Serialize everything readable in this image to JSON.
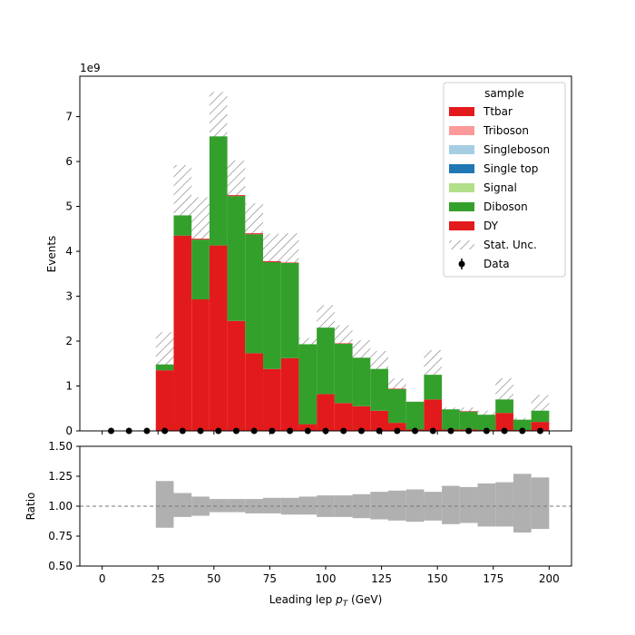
{
  "chart_data": [
    {
      "type": "bar",
      "stacked": true,
      "ylabel": "Events",
      "y_offset_label": "1e9",
      "ylim": [
        0,
        7.9
      ],
      "xlim": [
        -10,
        210
      ],
      "yticks": [
        0,
        1,
        2,
        3,
        4,
        5,
        6,
        7
      ],
      "bins": [
        [
          24,
          32
        ],
        [
          32,
          40
        ],
        [
          40,
          48
        ],
        [
          48,
          56
        ],
        [
          56,
          64
        ],
        [
          64,
          72
        ],
        [
          72,
          80
        ],
        [
          80,
          88
        ],
        [
          88,
          96
        ],
        [
          96,
          104
        ],
        [
          104,
          112
        ],
        [
          112,
          120
        ],
        [
          120,
          128
        ],
        [
          128,
          136
        ],
        [
          136,
          144
        ],
        [
          144,
          152
        ],
        [
          152,
          160
        ],
        [
          160,
          168
        ],
        [
          168,
          176
        ],
        [
          176,
          184
        ],
        [
          184,
          192
        ],
        [
          192,
          200
        ]
      ],
      "legend_title": "sample",
      "legend_position": "top-right",
      "series": [
        {
          "name": "DY",
          "color": "#e31a1c",
          "values": [
            1.35,
            4.35,
            2.93,
            4.13,
            2.45,
            1.73,
            1.38,
            1.62,
            0.15,
            0.82,
            0.62,
            0.55,
            0.45,
            0.18,
            0.03,
            0.7,
            0.03,
            0.03,
            0.02,
            0.4,
            0.02,
            0.2
          ]
        },
        {
          "name": "Diboson",
          "color": "#33a02c",
          "values": [
            0.13,
            0.45,
            1.33,
            2.43,
            2.78,
            2.65,
            2.38,
            2.12,
            1.78,
            1.48,
            1.32,
            1.08,
            0.93,
            0.75,
            0.62,
            0.55,
            0.45,
            0.4,
            0.34,
            0.3,
            0.23,
            0.25
          ]
        },
        {
          "name": "Signal",
          "color": "#b2df8a",
          "values": [
            0,
            0,
            0,
            0,
            0,
            0,
            0,
            0,
            0,
            0,
            0,
            0,
            0,
            0,
            0,
            0,
            0,
            0,
            0,
            0,
            0,
            0
          ]
        },
        {
          "name": "Single top",
          "color": "#1f78b4",
          "values": [
            0,
            0,
            0,
            0,
            0,
            0,
            0,
            0,
            0,
            0,
            0,
            0,
            0,
            0,
            0,
            0,
            0,
            0,
            0,
            0,
            0,
            0
          ]
        },
        {
          "name": "Singleboson",
          "color": "#a6cee3",
          "values": [
            0,
            0,
            0,
            0,
            0,
            0,
            0,
            0,
            0,
            0,
            0,
            0,
            0,
            0,
            0,
            0,
            0,
            0,
            0,
            0,
            0,
            0
          ]
        },
        {
          "name": "Triboson",
          "color": "#fb9a99",
          "values": [
            0,
            0,
            0,
            0,
            0,
            0,
            0,
            0,
            0,
            0,
            0,
            0,
            0,
            0,
            0,
            0,
            0,
            0,
            0,
            0,
            0,
            0
          ]
        },
        {
          "name": "Ttbar",
          "color": "#e31a1c",
          "values": [
            0,
            0,
            0.02,
            0,
            0.02,
            0.02,
            0.02,
            0.01,
            0,
            0,
            0.01,
            0,
            0,
            0.01,
            0,
            0,
            0,
            0.01,
            0,
            0,
            0,
            0
          ]
        }
      ],
      "stat_unc": {
        "name": "Stat. Unc.",
        "color": "#777777",
        "lo": [
          1.22,
          3.72,
          3.4,
          5.64,
          4.45,
          3.73,
          3.41,
          3.07,
          1.78,
          1.84,
          1.59,
          1.27,
          1.03,
          0.77,
          0.58,
          0.76,
          0.43,
          0.36,
          0.27,
          0.3,
          0.2,
          0.18
        ],
        "hi": [
          2.2,
          5.92,
          5.2,
          7.55,
          6.02,
          5.07,
          4.39,
          4.4,
          2.07,
          2.8,
          2.35,
          2.02,
          1.78,
          1.17,
          0.62,
          1.8,
          0.52,
          0.52,
          0.45,
          1.17,
          0.29,
          0.8
        ]
      },
      "data_points": {
        "name": "Data",
        "color": "#000000",
        "x": [
          4,
          12,
          20,
          28,
          36,
          44,
          52,
          60,
          68,
          76,
          84,
          92,
          100,
          108,
          116,
          124,
          132,
          140,
          148,
          156,
          164,
          172,
          180,
          188,
          196
        ],
        "y": [
          0,
          0,
          0,
          0,
          0,
          0,
          0,
          0,
          0,
          0,
          0,
          0,
          0,
          0,
          0,
          0,
          0,
          0,
          0,
          0,
          0,
          0,
          0,
          0,
          0
        ]
      }
    },
    {
      "type": "bar",
      "ylabel": "Ratio",
      "xlabel": "Leading lep p_T (GeV)",
      "xlabel_main": "Leading lep ",
      "xlabel_sym": "p",
      "xlabel_sub": "T",
      "xlabel_unit": " (GeV)",
      "xlim": [
        -10,
        210
      ],
      "ylim": [
        0.5,
        1.5
      ],
      "yticks": [
        "0.50",
        "0.75",
        "1.00",
        "1.25",
        "1.50"
      ],
      "ytick_values": [
        0.5,
        0.75,
        1.0,
        1.25,
        1.5
      ],
      "xticks": [
        "0",
        "25",
        "50",
        "75",
        "100",
        "125",
        "150",
        "175",
        "200"
      ],
      "xtick_values": [
        0,
        25,
        50,
        75,
        100,
        125,
        150,
        175,
        200
      ],
      "reference_line": 1.0,
      "unc_band_color": "#b0b0b0",
      "unc_lo": [
        0.82,
        0.91,
        0.92,
        0.95,
        0.95,
        0.94,
        0.94,
        0.93,
        0.93,
        0.91,
        0.91,
        0.9,
        0.89,
        0.88,
        0.87,
        0.88,
        0.85,
        0.86,
        0.83,
        0.83,
        0.78,
        0.81
      ],
      "unc_hi": [
        1.21,
        1.11,
        1.08,
        1.06,
        1.06,
        1.06,
        1.07,
        1.07,
        1.08,
        1.09,
        1.09,
        1.1,
        1.12,
        1.13,
        1.14,
        1.12,
        1.17,
        1.16,
        1.19,
        1.2,
        1.27,
        1.24
      ]
    }
  ]
}
